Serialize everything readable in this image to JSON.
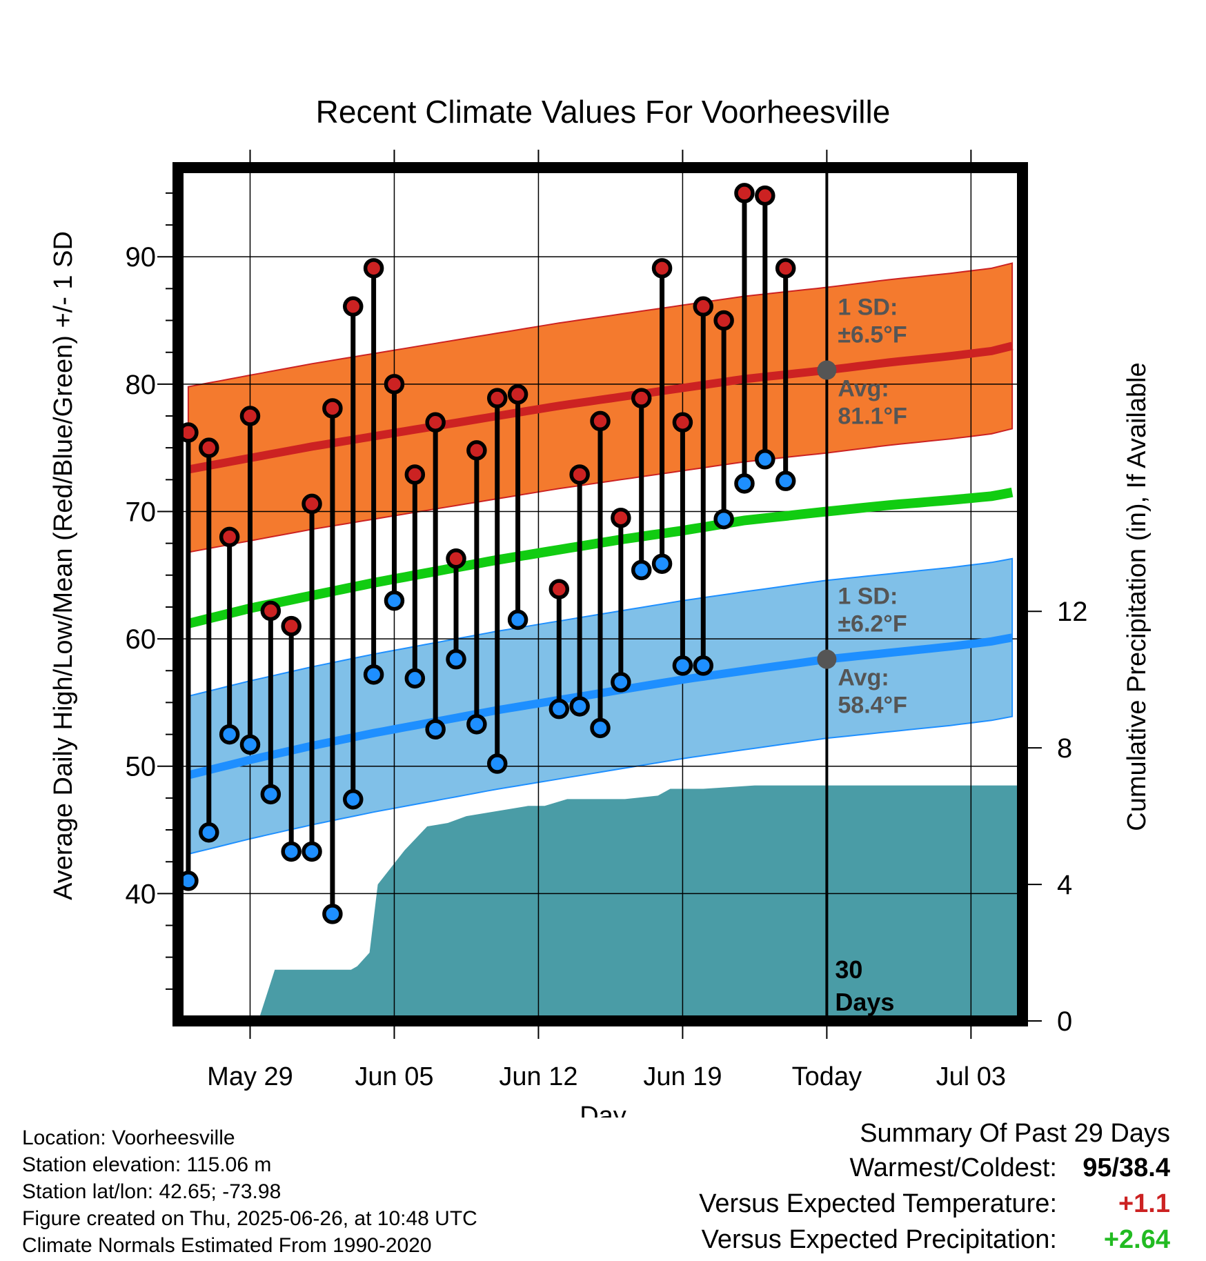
{
  "chart_data": {
    "type": "line",
    "title": "Recent Climate Values For Voorheesville",
    "xlabel": "Day",
    "ylabel": "Average Daily High/Low/Mean (Red/Blue/Green) +/- 1 SD",
    "y2label": "Cumulative Precipitation (in), If Available",
    "x_tick_labels": [
      "May 29",
      "Jun 05",
      "Jun 12",
      "Jun 19",
      "Today",
      "Jul 03"
    ],
    "x_tick_days": [
      3,
      10,
      17,
      24,
      31,
      38
    ],
    "y_ticks": [
      40,
      50,
      60,
      70,
      80,
      90
    ],
    "y2_ticks": [
      0,
      4,
      8,
      12
    ],
    "ylim": [
      30,
      97
    ],
    "y2lim": [
      0,
      25
    ],
    "xlim": [
      -0.5,
      40.5
    ],
    "grid": true,
    "today_label": [
      "30",
      "Days"
    ],
    "colors": {
      "high": "#cc2222",
      "high_band": "#f47a2e",
      "low": "#1e8fff",
      "low_band": "#80c0e8",
      "mean": "#11cc11",
      "precip": "#4a9ca6",
      "annotation": "#555555"
    },
    "normal_high": {
      "avg": [
        73.3,
        74.2,
        75.1,
        75.9,
        76.7,
        77.5,
        78.3,
        79.0,
        79.7,
        80.4,
        81.1,
        81.7,
        82.2,
        82.6,
        83.0
      ],
      "sd_label": "1 SD:",
      "sd_value": "±6.5°F",
      "avg_label": "Avg:",
      "avg_value": "81.1°F",
      "today_avg": 81.1
    },
    "normal_low": {
      "avg": [
        49.3,
        50.5,
        51.6,
        52.6,
        53.5,
        54.4,
        55.2,
        56.0,
        56.8,
        57.5,
        58.4,
        58.9,
        59.4,
        59.8,
        60.1
      ],
      "sd_label": "1 SD:",
      "sd_value": "±6.2°F",
      "avg_label": "Avg:",
      "avg_value": "58.4°F",
      "today_avg": 58.4
    },
    "normal_mean": [
      61.2,
      62.4,
      63.4,
      64.4,
      65.3,
      66.2,
      67.0,
      67.8,
      68.5,
      69.3,
      70.0,
      70.5,
      70.9,
      71.2,
      71.5
    ],
    "normal_days": [
      0,
      3,
      6,
      9,
      12,
      15,
      18,
      21,
      24,
      27,
      31,
      34,
      37,
      39,
      40
    ],
    "high_sd": 6.5,
    "low_sd": 6.2,
    "days": [
      0,
      1,
      2,
      3,
      4,
      5,
      6,
      7,
      8,
      9,
      10,
      11,
      12,
      13,
      14,
      15,
      16,
      17,
      18,
      19,
      20,
      21,
      22,
      23,
      24,
      25,
      26,
      27,
      28,
      29,
      30
    ],
    "highs": [
      76.2,
      75.0,
      68.0,
      77.5,
      62.2,
      61.0,
      70.6,
      78.1,
      86.1,
      89.1,
      80.0,
      72.9,
      77.0,
      66.3,
      74.8,
      78.9,
      79.2,
      null,
      63.9,
      72.9,
      77.1,
      69.5,
      78.9,
      89.1,
      77.0,
      86.1,
      85.0,
      95.0,
      94.8,
      89.1,
      null
    ],
    "lows": [
      41.0,
      44.8,
      52.5,
      51.7,
      47.8,
      43.3,
      43.3,
      38.4,
      47.4,
      57.2,
      63.0,
      56.9,
      52.9,
      58.4,
      53.3,
      50.2,
      61.5,
      null,
      54.5,
      54.7,
      53.0,
      56.6,
      65.4,
      65.9,
      57.9,
      57.9,
      69.4,
      72.2,
      74.1,
      72.4,
      null
    ],
    "precip": {
      "days": [
        3.4,
        4.2,
        7.2,
        7.9,
        8.2,
        8.5,
        8.8,
        9.2,
        10.5,
        11.6,
        12.6,
        13.5,
        16.5,
        17.3,
        18.4,
        19.4,
        21.2,
        22.8,
        23.4,
        25.0,
        27.5,
        30.5,
        40.5
      ],
      "values": [
        0.0,
        1.5,
        1.5,
        1.5,
        1.6,
        1.8,
        2.0,
        4.0,
        5.0,
        5.7,
        5.8,
        6.0,
        6.3,
        6.3,
        6.5,
        6.5,
        6.5,
        6.6,
        6.8,
        6.8,
        6.9,
        6.9,
        6.9
      ]
    }
  },
  "footer": {
    "location": "Location: Voorheesville",
    "elevation": "Station elevation: 115.06 m",
    "latlon": "Station lat/lon: 42.65; -73.98",
    "created": "Figure created on Thu, 2025-06-26, at 10:48 UTC",
    "normals": "Climate Normals Estimated From 1990-2020"
  },
  "summary": {
    "heading": "Summary Of Past 29 Days",
    "warmest_label": "Warmest/Coldest:",
    "warmest_value": "95/38.4",
    "temp_label": "Versus Expected Temperature:",
    "temp_value": "+1.1",
    "temp_color": "#cc2222",
    "precip_label": "Versus Expected Precipitation:",
    "precip_value": "+2.64",
    "precip_color": "#22bb22"
  }
}
